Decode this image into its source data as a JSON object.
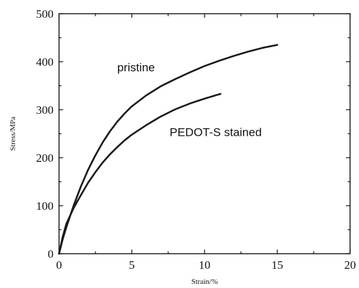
{
  "chart_data": {
    "type": "line",
    "title": "",
    "xlabel": "Strain/%",
    "ylabel": "Stress/MPa",
    "xlim": [
      0,
      20
    ],
    "ylim": [
      0,
      500
    ],
    "xticks": [
      "0",
      "5",
      "10",
      "15",
      "20"
    ],
    "yticks": [
      "0",
      "100",
      "200",
      "300",
      "400",
      "500"
    ],
    "grid": false,
    "series": [
      {
        "name": "pristine",
        "x": [
          0,
          0.25,
          0.5,
          1,
          1.5,
          2,
          2.5,
          3,
          3.5,
          4,
          4.5,
          5,
          6,
          7,
          8,
          9,
          10,
          11,
          12,
          13,
          14,
          15
        ],
        "y": [
          0,
          30,
          55,
          100,
          140,
          175,
          205,
          232,
          255,
          275,
          292,
          307,
          330,
          349,
          364,
          378,
          391,
          402,
          412,
          421,
          429,
          435
        ]
      },
      {
        "name": "PEDOT-S stained",
        "x": [
          0,
          0.25,
          0.5,
          1,
          1.5,
          2,
          2.5,
          3,
          3.5,
          4,
          4.5,
          5,
          6,
          7,
          8,
          9,
          10,
          11.1
        ],
        "y": [
          0,
          35,
          62,
          95,
          122,
          148,
          170,
          190,
          207,
          222,
          236,
          248,
          268,
          286,
          301,
          313,
          323,
          333
        ]
      }
    ]
  }
}
